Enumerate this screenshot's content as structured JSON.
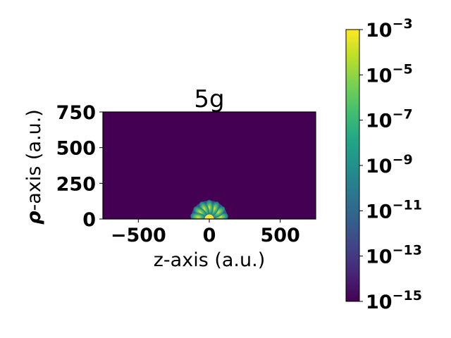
{
  "chart_data": {
    "type": "heatmap",
    "title": "5g",
    "xlabel": "z-axis (a.u.)",
    "ylabel_bold": "ρ",
    "ylabel_rest": "-axis  (a.u.)",
    "xlim": [
      -750,
      750
    ],
    "ylim": [
      0,
      750
    ],
    "x_ticks": [
      {
        "value": -500,
        "label": "−500"
      },
      {
        "value": 0,
        "label": "0"
      },
      {
        "value": 500,
        "label": "500"
      }
    ],
    "y_ticks": [
      {
        "value": 0,
        "label": "0"
      },
      {
        "value": 250,
        "label": "250"
      },
      {
        "value": 500,
        "label": "500"
      },
      {
        "value": 750,
        "label": "750"
      }
    ],
    "colorbar": {
      "scale": "log",
      "colormap": "viridis",
      "min_exponent": -15,
      "max_exponent": -3,
      "ticks": [
        {
          "exp": -3,
          "base": "10",
          "sup": "−3"
        },
        {
          "exp": -5,
          "base": "10",
          "sup": "−5"
        },
        {
          "exp": -7,
          "base": "10",
          "sup": "−7"
        },
        {
          "exp": -9,
          "base": "10",
          "sup": "−9"
        },
        {
          "exp": -11,
          "base": "10",
          "sup": "−11"
        },
        {
          "exp": -13,
          "base": "10",
          "sup": "−13"
        },
        {
          "exp": -15,
          "base": "10",
          "sup": "−15"
        }
      ]
    },
    "density_lobes": {
      "extent_au": 130,
      "angles_deg": [
        10,
        37,
        64,
        90,
        116,
        143,
        170
      ]
    },
    "background_color": "#440154",
    "grid": false
  }
}
